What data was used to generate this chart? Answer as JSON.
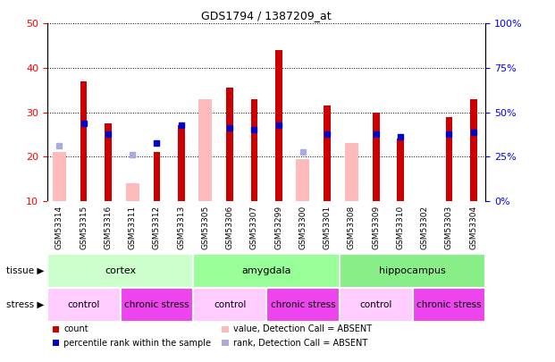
{
  "title": "GDS1794 / 1387209_at",
  "samples": [
    "GSM53314",
    "GSM53315",
    "GSM53316",
    "GSM53311",
    "GSM53312",
    "GSM53313",
    "GSM53305",
    "GSM53306",
    "GSM53307",
    "GSM53299",
    "GSM53300",
    "GSM53301",
    "GSM53308",
    "GSM53309",
    "GSM53310",
    "GSM53302",
    "GSM53303",
    "GSM53304"
  ],
  "count_values": [
    null,
    37,
    27.5,
    null,
    21,
    27,
    null,
    35.5,
    33,
    44,
    null,
    31.5,
    null,
    30,
    24,
    null,
    29,
    33
  ],
  "absent_value_values": [
    21,
    null,
    null,
    14,
    null,
    null,
    33,
    null,
    null,
    null,
    19.5,
    null,
    23,
    null,
    null,
    null,
    null,
    null
  ],
  "percentile_rank": [
    null,
    27.5,
    25,
    null,
    23,
    27,
    null,
    26.5,
    26,
    27,
    null,
    25,
    null,
    25,
    24.5,
    null,
    25,
    25.5
  ],
  "rank_absent": [
    22.5,
    null,
    null,
    20.5,
    null,
    null,
    null,
    null,
    null,
    null,
    21,
    null,
    null,
    null,
    null,
    null,
    null,
    null
  ],
  "tissue_groups": [
    {
      "label": "cortex",
      "start": 0,
      "end": 6,
      "color": "#ccffcc"
    },
    {
      "label": "amygdala",
      "start": 6,
      "end": 12,
      "color": "#99ff99"
    },
    {
      "label": "hippocampus",
      "start": 12,
      "end": 18,
      "color": "#88ee88"
    }
  ],
  "stress_groups": [
    {
      "label": "control",
      "start": 0,
      "end": 3,
      "color": "#ffccff"
    },
    {
      "label": "chronic stress",
      "start": 3,
      "end": 6,
      "color": "#ee44ee"
    },
    {
      "label": "control",
      "start": 6,
      "end": 9,
      "color": "#ffccff"
    },
    {
      "label": "chronic stress",
      "start": 9,
      "end": 12,
      "color": "#ee44ee"
    },
    {
      "label": "control",
      "start": 12,
      "end": 15,
      "color": "#ffccff"
    },
    {
      "label": "chronic stress",
      "start": 15,
      "end": 18,
      "color": "#ee44ee"
    }
  ],
  "ylim_left": [
    10,
    50
  ],
  "ylim_right": [
    0,
    100
  ],
  "yticks_left": [
    10,
    20,
    30,
    40,
    50
  ],
  "yticks_right": [
    0,
    25,
    50,
    75,
    100
  ],
  "color_count": "#cc0000",
  "color_absent_value": "#ffbbbb",
  "color_percentile": "#0000cc",
  "color_rank_absent": "#aaaadd",
  "xticklabel_bg": "#dddddd"
}
